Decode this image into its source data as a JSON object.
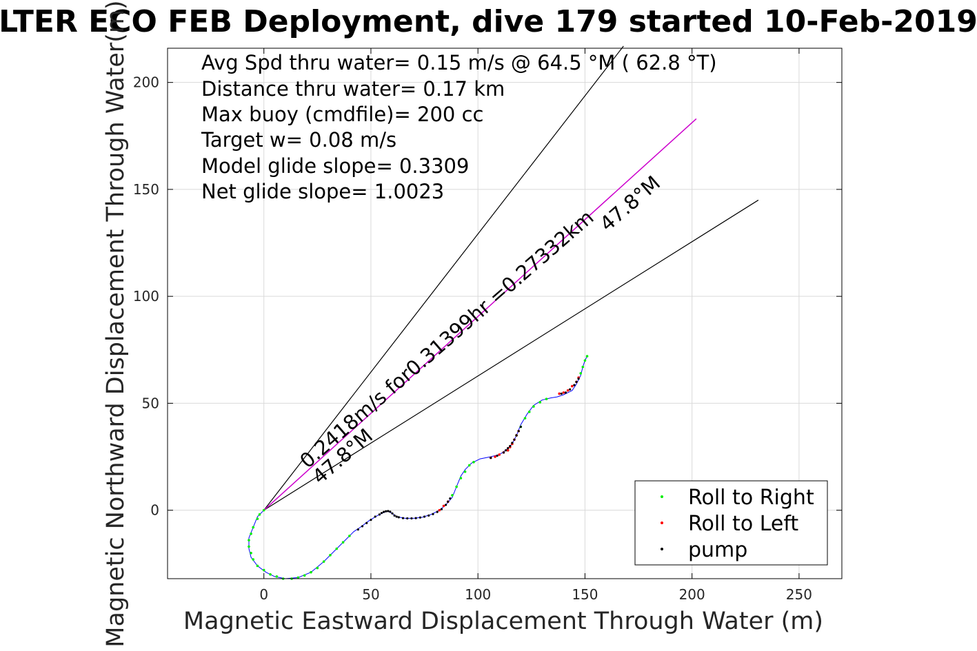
{
  "chart_data": {
    "type": "scatter",
    "title": "LTER ECO FEB Deployment, dive 179 started 10-Feb-2019",
    "xlabel": "Magnetic Eastward Displacement Through Water (m)",
    "ylabel": "Magnetic Northward Displacement Through Water(m)",
    "xlim": [
      -45,
      270
    ],
    "ylim": [
      -32,
      216
    ],
    "xticks": [
      "0",
      "50",
      "100",
      "150",
      "200",
      "250"
    ],
    "yticks": [
      "0",
      "50",
      "100",
      "150",
      "200"
    ],
    "grid": true,
    "legend_position": "bottom-right",
    "stats": [
      "Avg Spd thru water=  0.15 m/s @  64.5 °M ( 62.8 °T)",
      "Distance thru water=  0.17 km",
      "Max buoy (cmdfile)= 200 cc",
      "Target w= 0.08 m/s",
      "Model glide slope= 0.3309",
      "Net glide slope= 1.0023"
    ],
    "annotations": {
      "speed_line": "0.2418m/s for0.31399hr =0.27332km",
      "heading_near": "47.8°M",
      "heading_far": "47.8°M"
    },
    "lines": {
      "cone_upper_end": [
        168,
        217
      ],
      "cone_lower_end": [
        231,
        145
      ],
      "heading_end": [
        202,
        183
      ]
    },
    "legend": [
      {
        "label": "Roll to Right",
        "color": "#00ee00"
      },
      {
        "label": "Roll to Left",
        "color": "#ff0000"
      },
      {
        "label": "pump",
        "color": "#000000"
      }
    ],
    "colors": {
      "track": "#0000ff",
      "heading_line": "#cc00cc",
      "cone": "#000000",
      "roll_right": "#00ee00",
      "roll_left": "#ff0000",
      "pump": "#000000"
    },
    "track": [
      [
        0,
        0
      ],
      [
        -3,
        -3
      ],
      [
        -5,
        -8
      ],
      [
        -7,
        -13
      ],
      [
        -7,
        -18
      ],
      [
        -6,
        -22
      ],
      [
        -3,
        -26
      ],
      [
        1,
        -29
      ],
      [
        5,
        -31
      ],
      [
        10,
        -32
      ],
      [
        16,
        -31.5
      ],
      [
        22,
        -29
      ],
      [
        28,
        -24
      ],
      [
        33,
        -19
      ],
      [
        38,
        -14
      ],
      [
        42,
        -10
      ],
      [
        45,
        -8
      ],
      [
        49,
        -5
      ],
      [
        53,
        -2.5
      ],
      [
        56,
        -1
      ],
      [
        58,
        -0.5
      ],
      [
        60,
        -1.5
      ],
      [
        62,
        -3
      ],
      [
        66,
        -3.8
      ],
      [
        70,
        -3.8
      ],
      [
        74,
        -3.3
      ],
      [
        78,
        -2
      ],
      [
        82,
        0
      ],
      [
        85,
        2.5
      ],
      [
        88,
        6
      ],
      [
        90,
        11
      ],
      [
        92,
        16
      ],
      [
        94,
        19
      ],
      [
        97,
        22
      ],
      [
        101,
        24
      ],
      [
        106,
        25
      ],
      [
        110,
        26
      ],
      [
        113,
        28
      ],
      [
        116,
        31
      ],
      [
        118,
        35
      ],
      [
        120,
        40
      ],
      [
        123,
        45
      ],
      [
        126,
        49
      ],
      [
        130,
        51.5
      ],
      [
        134,
        52.5
      ],
      [
        137,
        53
      ],
      [
        140,
        54
      ],
      [
        142,
        55
      ],
      [
        144,
        56
      ],
      [
        146,
        59
      ],
      [
        148,
        63
      ],
      [
        149,
        67
      ],
      [
        150,
        70
      ],
      [
        151,
        72
      ]
    ],
    "roll_right": [
      [
        0,
        0
      ],
      [
        -2,
        -2
      ],
      [
        -3,
        -4
      ],
      [
        -5,
        -8
      ],
      [
        -6,
        -11
      ],
      [
        -7,
        -14
      ],
      [
        -7,
        -17
      ],
      [
        -6,
        -20
      ],
      [
        -5,
        -23
      ],
      [
        -3,
        -26
      ],
      [
        0,
        -28
      ],
      [
        3,
        -30
      ],
      [
        6,
        -31
      ],
      [
        9,
        -32
      ],
      [
        13,
        -32
      ],
      [
        16,
        -31.5
      ],
      [
        19,
        -30.5
      ],
      [
        22,
        -29
      ],
      [
        25,
        -27
      ],
      [
        28,
        -24
      ],
      [
        31,
        -21
      ],
      [
        34,
        -18
      ],
      [
        37,
        -15
      ],
      [
        40,
        -12
      ],
      [
        88,
        7
      ],
      [
        90,
        11
      ],
      [
        92,
        15
      ],
      [
        94,
        18
      ],
      [
        96,
        21
      ],
      [
        98,
        22.5
      ],
      [
        114,
        28
      ],
      [
        116,
        31
      ],
      [
        118,
        35
      ],
      [
        120,
        39
      ],
      [
        122,
        43
      ],
      [
        124,
        46
      ],
      [
        126,
        48.5
      ],
      [
        129,
        50.5
      ],
      [
        132,
        52
      ],
      [
        148,
        64
      ],
      [
        149,
        67
      ],
      [
        150,
        70
      ],
      [
        151,
        72
      ]
    ],
    "roll_left": [
      [
        82,
        0
      ],
      [
        84,
        2
      ],
      [
        86,
        4
      ],
      [
        106,
        24.5
      ],
      [
        108,
        25
      ],
      [
        110,
        26
      ],
      [
        112,
        27
      ],
      [
        114,
        28
      ],
      [
        115,
        29.5
      ],
      [
        116,
        31
      ],
      [
        117,
        33
      ],
      [
        118,
        35
      ],
      [
        119,
        37
      ],
      [
        138,
        54.5
      ],
      [
        140,
        55
      ],
      [
        142,
        56
      ],
      [
        144,
        58
      ],
      [
        146,
        60
      ],
      [
        147,
        62
      ]
    ],
    "pump": [
      [
        44,
        -9
      ],
      [
        46,
        -7.5
      ],
      [
        48,
        -6
      ],
      [
        50,
        -4.5
      ],
      [
        52,
        -3
      ],
      [
        54,
        -2
      ],
      [
        55,
        -1.3
      ],
      [
        56,
        -0.8
      ],
      [
        57,
        -0.5
      ],
      [
        58,
        -0.4
      ],
      [
        59,
        -0.7
      ],
      [
        60,
        -1.5
      ],
      [
        61,
        -2.5
      ],
      [
        62,
        -3
      ],
      [
        63,
        -3.3
      ],
      [
        65,
        -3.7
      ],
      [
        67,
        -3.8
      ],
      [
        69,
        -3.8
      ],
      [
        71,
        -3.7
      ],
      [
        73,
        -3.4
      ],
      [
        75,
        -3
      ],
      [
        77,
        -2.5
      ],
      [
        79,
        -1.8
      ],
      [
        81,
        -0.8
      ],
      [
        83,
        0.5
      ],
      [
        85,
        2.5
      ],
      [
        86,
        4
      ],
      [
        87,
        5.5
      ],
      [
        106,
        24.5
      ],
      [
        109,
        25.5
      ],
      [
        112,
        27
      ],
      [
        113,
        28
      ],
      [
        114,
        29
      ],
      [
        115,
        30
      ],
      [
        116,
        31.5
      ],
      [
        117,
        33
      ],
      [
        118,
        35
      ],
      [
        119,
        37
      ],
      [
        120,
        39
      ],
      [
        139,
        54.5
      ],
      [
        141,
        55
      ],
      [
        143,
        56.5
      ],
      [
        145,
        58.5
      ],
      [
        146,
        60
      ],
      [
        147,
        61.5
      ]
    ]
  }
}
